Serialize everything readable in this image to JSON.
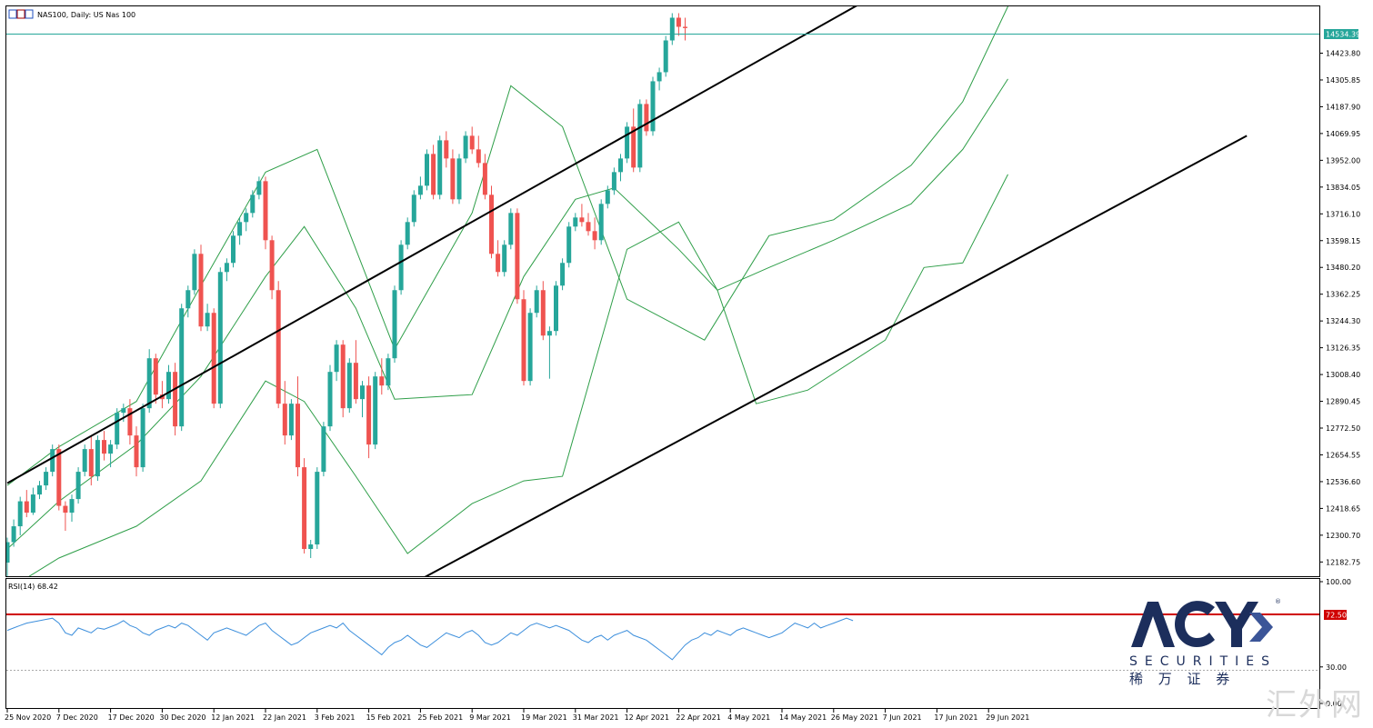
{
  "header": {
    "symbol_label": "NAS100, Daily:  US Nas 100"
  },
  "rsi": {
    "label": "RSI(14) 68.42",
    "period": 14,
    "current": 68.42,
    "level": 72.5,
    "level_label": "72.50",
    "scale_labels": [
      "100.00",
      "30.00",
      "0.00"
    ],
    "values": [
      60,
      62,
      64,
      66,
      67,
      68,
      69,
      70,
      66,
      58,
      56,
      62,
      60,
      58,
      62,
      61,
      63,
      65,
      68,
      64,
      62,
      58,
      56,
      60,
      62,
      64,
      62,
      66,
      64,
      60,
      56,
      52,
      58,
      60,
      62,
      60,
      58,
      56,
      60,
      64,
      66,
      60,
      56,
      52,
      48,
      50,
      54,
      58,
      60,
      62,
      64,
      62,
      66,
      60,
      56,
      52,
      48,
      44,
      40,
      46,
      50,
      52,
      56,
      52,
      48,
      46,
      50,
      54,
      58,
      56,
      54,
      58,
      60,
      56,
      50,
      48,
      50,
      54,
      58,
      56,
      60,
      64,
      66,
      64,
      62,
      64,
      62,
      60,
      56,
      52,
      50,
      54,
      56,
      52,
      56,
      58,
      60,
      56,
      54,
      52,
      48,
      44,
      40,
      36,
      42,
      48,
      52,
      54,
      58,
      56,
      60,
      58,
      56,
      60,
      62,
      60,
      58,
      56,
      54,
      56,
      58,
      62,
      66,
      64,
      62,
      66,
      62,
      64,
      66,
      68,
      70,
      68
    ]
  },
  "price_axis_labels": [
    "14423.80",
    "14305.85",
    "14187.90",
    "14069.95",
    "13952.00",
    "13834.05",
    "13716.10",
    "13598.15",
    "13480.20",
    "13362.25",
    "13244.30",
    "13126.35",
    "13008.40",
    "12890.45",
    "12772.50",
    "12654.55",
    "12536.60",
    "12418.65",
    "12300.70",
    "12182.75"
  ],
  "current_price_label": "14534.39",
  "date_labels": [
    "25 Nov 2020",
    "7 Dec 2020",
    "17 Dec 2020",
    "30 Dec 2020",
    "12 Jan 2021",
    "22 Jan 2021",
    "3 Feb 2021",
    "15 Feb 2021",
    "25 Feb 2021",
    "9 Mar 2021",
    "19 Mar 2021",
    "31 Mar 2021",
    "12 Apr 2021",
    "22 Apr 2021",
    "4 May 2021",
    "14 May 2021",
    "26 May 2021",
    "7 Jun 2021",
    "17 Jun 2021",
    "29 Jun 2021"
  ],
  "logo": {
    "brand": "ACY",
    "registered": "®",
    "tagline": "SECURITIES",
    "chinese": "稀 万 证 券"
  },
  "watermark": "汇外网",
  "colors": {
    "bull": "#26a69a",
    "bear": "#ef5350",
    "bands": "#2e9e48",
    "channel": "#000000",
    "price_line": "#26a69a",
    "rsi_line": "#3d8fdc",
    "rsi_level": "#d00000",
    "logo": "#1c2e5c"
  },
  "chart_data": {
    "type": "candlestick",
    "symbol": "NAS100",
    "timeframe": "Daily",
    "ylim": [
      12120,
      14630
    ],
    "indicators": [
      "Bollinger Bands",
      "RSI(14)",
      "Trend channel"
    ],
    "last_price": 14534.39,
    "ohlc": [
      [
        12180,
        12290,
        12080,
        12270
      ],
      [
        12270,
        12370,
        12250,
        12340
      ],
      [
        12340,
        12470,
        12300,
        12450
      ],
      [
        12450,
        12500,
        12380,
        12400
      ],
      [
        12400,
        12510,
        12390,
        12480
      ],
      [
        12480,
        12540,
        12460,
        12520
      ],
      [
        12520,
        12600,
        12500,
        12580
      ],
      [
        12580,
        12700,
        12560,
        12680
      ],
      [
        12680,
        12700,
        12410,
        12430
      ],
      [
        12430,
        12450,
        12320,
        12400
      ],
      [
        12400,
        12480,
        12360,
        12460
      ],
      [
        12460,
        12600,
        12440,
        12580
      ],
      [
        12580,
        12700,
        12560,
        12680
      ],
      [
        12680,
        12740,
        12520,
        12560
      ],
      [
        12560,
        12740,
        12540,
        12720
      ],
      [
        12720,
        12760,
        12630,
        12660
      ],
      [
        12660,
        12720,
        12600,
        12700
      ],
      [
        12700,
        12860,
        12680,
        12840
      ],
      [
        12840,
        12880,
        12800,
        12860
      ],
      [
        12860,
        12900,
        12700,
        12740
      ],
      [
        12740,
        12780,
        12560,
        12600
      ],
      [
        12600,
        12880,
        12580,
        12860
      ],
      [
        12860,
        13120,
        12840,
        13080
      ],
      [
        13080,
        13100,
        12880,
        12920
      ],
      [
        12920,
        12980,
        12860,
        12900
      ],
      [
        12900,
        13050,
        12880,
        13020
      ],
      [
        13020,
        13060,
        12740,
        12780
      ],
      [
        12780,
        13320,
        12760,
        13300
      ],
      [
        13300,
        13400,
        13260,
        13380
      ],
      [
        13380,
        13560,
        13360,
        13540
      ],
      [
        13540,
        13580,
        13200,
        13220
      ],
      [
        13220,
        13320,
        13200,
        13280
      ],
      [
        13280,
        13300,
        12860,
        12880
      ],
      [
        12880,
        13480,
        12860,
        13460
      ],
      [
        13460,
        13520,
        13420,
        13500
      ],
      [
        13500,
        13640,
        13480,
        13620
      ],
      [
        13620,
        13700,
        13580,
        13680
      ],
      [
        13680,
        13740,
        13640,
        13720
      ],
      [
        13720,
        13820,
        13700,
        13800
      ],
      [
        13800,
        13880,
        13780,
        13860
      ],
      [
        13860,
        13880,
        13560,
        13600
      ],
      [
        13600,
        13620,
        13340,
        13380
      ],
      [
        13380,
        13420,
        12860,
        12880
      ],
      [
        12880,
        12980,
        12700,
        12740
      ],
      [
        12740,
        12900,
        12720,
        12880
      ],
      [
        12880,
        13000,
        12560,
        12600
      ],
      [
        12600,
        12640,
        12220,
        12240
      ],
      [
        12240,
        12280,
        12200,
        12260
      ],
      [
        12260,
        12600,
        12240,
        12580
      ],
      [
        12580,
        12800,
        12560,
        12780
      ],
      [
        12780,
        13050,
        12760,
        13020
      ],
      [
        13020,
        13160,
        12980,
        13140
      ],
      [
        13140,
        13160,
        12820,
        12860
      ],
      [
        12860,
        13080,
        12840,
        13060
      ],
      [
        13060,
        13160,
        12880,
        12900
      ],
      [
        12900,
        12980,
        12820,
        12960
      ],
      [
        12960,
        13000,
        12640,
        12700
      ],
      [
        12700,
        13020,
        12680,
        13000
      ],
      [
        13000,
        13080,
        12920,
        12960
      ],
      [
        12960,
        13100,
        12940,
        13080
      ],
      [
        13080,
        13400,
        13060,
        13380
      ],
      [
        13380,
        13600,
        13360,
        13580
      ],
      [
        13580,
        13700,
        13560,
        13680
      ],
      [
        13680,
        13820,
        13660,
        13800
      ],
      [
        13800,
        13880,
        13780,
        13840
      ],
      [
        13840,
        14000,
        13820,
        13980
      ],
      [
        13980,
        14020,
        13780,
        13800
      ],
      [
        13800,
        14060,
        13780,
        14040
      ],
      [
        14040,
        14080,
        13920,
        13960
      ],
      [
        13960,
        14000,
        13760,
        13780
      ],
      [
        13780,
        13980,
        13760,
        13960
      ],
      [
        13960,
        14080,
        13940,
        14060
      ],
      [
        14060,
        14100,
        13980,
        14000
      ],
      [
        14000,
        14060,
        13920,
        13940
      ],
      [
        13940,
        13980,
        13780,
        13800
      ],
      [
        13800,
        13840,
        13520,
        13540
      ],
      [
        13540,
        13600,
        13440,
        13460
      ],
      [
        13460,
        13600,
        13440,
        13580
      ],
      [
        13580,
        13740,
        13560,
        13720
      ],
      [
        13720,
        13740,
        13320,
        13340
      ],
      [
        13340,
        13380,
        12960,
        12980
      ],
      [
        12980,
        13300,
        12960,
        13280
      ],
      [
        13280,
        13400,
        13260,
        13380
      ],
      [
        13380,
        13420,
        13160,
        13180
      ],
      [
        13180,
        13220,
        12990,
        13200
      ],
      [
        13200,
        13420,
        13180,
        13400
      ],
      [
        13400,
        13520,
        13380,
        13500
      ],
      [
        13500,
        13680,
        13480,
        13660
      ],
      [
        13660,
        13720,
        13640,
        13700
      ],
      [
        13700,
        13760,
        13660,
        13680
      ],
      [
        13680,
        13720,
        13620,
        13640
      ],
      [
        13640,
        13700,
        13560,
        13600
      ],
      [
        13600,
        13780,
        13580,
        13760
      ],
      [
        13760,
        13840,
        13740,
        13820
      ],
      [
        13820,
        13920,
        13800,
        13900
      ],
      [
        13900,
        13980,
        13860,
        13960
      ],
      [
        13960,
        14120,
        13940,
        14100
      ],
      [
        14100,
        14180,
        13900,
        13920
      ],
      [
        13920,
        14220,
        13900,
        14200
      ],
      [
        14200,
        14220,
        14060,
        14080
      ],
      [
        14080,
        14320,
        14060,
        14300
      ],
      [
        14300,
        14360,
        14260,
        14340
      ],
      [
        14340,
        14500,
        14320,
        14480
      ],
      [
        14480,
        14600,
        14460,
        14580
      ],
      [
        14580,
        14600,
        14500,
        14540
      ],
      [
        14540,
        14580,
        14480,
        14534.39
      ]
    ],
    "bollinger_bands": {
      "upper": [
        [
          0,
          12520
        ],
        [
          8,
          12690
        ],
        [
          20,
          12890
        ],
        [
          30,
          13400
        ],
        [
          40,
          13900
        ],
        [
          48,
          14000
        ],
        [
          60,
          13120
        ],
        [
          72,
          13720
        ],
        [
          78,
          14280
        ],
        [
          86,
          14100
        ],
        [
          96,
          13340
        ],
        [
          108,
          13160
        ],
        [
          118,
          13620
        ],
        [
          128,
          13690
        ],
        [
          140,
          13930
        ],
        [
          148,
          14210
        ],
        [
          155,
          14630
        ]
      ],
      "middle": [
        [
          0,
          12240
        ],
        [
          8,
          12450
        ],
        [
          20,
          12700
        ],
        [
          30,
          13000
        ],
        [
          40,
          13440
        ],
        [
          46,
          13660
        ],
        [
          54,
          13300
        ],
        [
          60,
          12900
        ],
        [
          72,
          12920
        ],
        [
          80,
          13440
        ],
        [
          88,
          13780
        ],
        [
          94,
          13830
        ],
        [
          104,
          13560
        ],
        [
          110,
          13380
        ],
        [
          118,
          13480
        ],
        [
          128,
          13600
        ],
        [
          140,
          13760
        ],
        [
          148,
          14000
        ],
        [
          155,
          14310
        ]
      ],
      "lower": [
        [
          0,
          12060
        ],
        [
          8,
          12200
        ],
        [
          20,
          12340
        ],
        [
          30,
          12540
        ],
        [
          40,
          12980
        ],
        [
          46,
          12890
        ],
        [
          54,
          12560
        ],
        [
          62,
          12220
        ],
        [
          72,
          12440
        ],
        [
          80,
          12540
        ],
        [
          86,
          12560
        ],
        [
          96,
          13560
        ],
        [
          104,
          13680
        ],
        [
          110,
          13380
        ],
        [
          116,
          12880
        ],
        [
          124,
          12940
        ],
        [
          136,
          13160
        ],
        [
          142,
          13480
        ],
        [
          148,
          13500
        ],
        [
          155,
          13890
        ]
      ]
    },
    "channel_lines": {
      "upper": [
        [
          0,
          12530
        ],
        [
          137,
          14720
        ]
      ],
      "lower": [
        [
          61,
          12060
        ],
        [
          192,
          14060
        ]
      ]
    }
  }
}
